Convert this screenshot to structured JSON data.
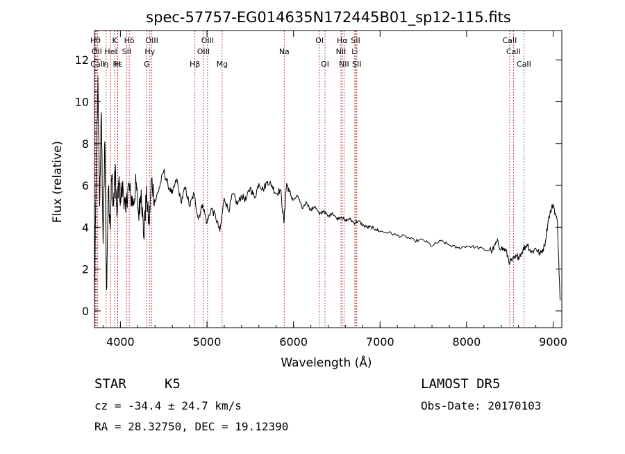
{
  "chart_data": {
    "type": "line",
    "title": "spec-57757-EG014635N172445B01_sp12-115.fits",
    "xlabel": "Wavelength (Å)",
    "ylabel": "Flux (relative)",
    "xlim": [
      3700,
      9100
    ],
    "ylim": [
      -0.8,
      13.4
    ],
    "xticks": [
      4000,
      5000,
      6000,
      7000,
      8000,
      9000
    ],
    "yticks": [
      0,
      2,
      4,
      6,
      8,
      10,
      12
    ],
    "grid": false,
    "series": [
      {
        "color": "#000000",
        "x": [
          3700,
          3720,
          3740,
          3760,
          3780,
          3800,
          3820,
          3840,
          3860,
          3880,
          3900,
          3920,
          3940,
          3960,
          3980,
          4000,
          4030,
          4060,
          4090,
          4120,
          4150,
          4180,
          4210,
          4240,
          4270,
          4300,
          4330,
          4360,
          4400,
          4450,
          4500,
          4550,
          4600,
          4650,
          4700,
          4750,
          4800,
          4850,
          4900,
          4950,
          5000,
          5050,
          5100,
          5150,
          5200,
          5250,
          5300,
          5350,
          5400,
          5450,
          5500,
          5550,
          5600,
          5650,
          5700,
          5750,
          5800,
          5850,
          5890,
          5920,
          5950,
          6000,
          6050,
          6100,
          6150,
          6200,
          6250,
          6300,
          6350,
          6400,
          6450,
          6500,
          6550,
          6600,
          6650,
          6700,
          6750,
          6800,
          6850,
          6900,
          6950,
          7000,
          7100,
          7200,
          7300,
          7400,
          7500,
          7600,
          7700,
          7800,
          7900,
          8000,
          8100,
          8200,
          8300,
          8350,
          8400,
          8450,
          8500,
          8550,
          8600,
          8650,
          8700,
          8750,
          8800,
          8850,
          8900,
          8950,
          9000,
          9050,
          9080
        ],
        "y": [
          0.5,
          6.5,
          11.2,
          5.0,
          9.5,
          3.2,
          8.1,
          1.0,
          5.9,
          4.2,
          6.5,
          5.0,
          6.8,
          4.5,
          6.2,
          5.4,
          5.9,
          4.7,
          6.0,
          5.5,
          5.1,
          6.1,
          4.6,
          5.8,
          3.5,
          5.6,
          4.1,
          6.3,
          5.2,
          5.9,
          6.7,
          6.0,
          5.6,
          6.3,
          5.2,
          5.9,
          5.0,
          5.6,
          4.4,
          5.1,
          4.2,
          4.9,
          4.5,
          3.8,
          5.4,
          4.8,
          5.6,
          5.1,
          5.5,
          5.3,
          5.9,
          5.4,
          6.1,
          5.8,
          6.2,
          6.0,
          5.6,
          5.8,
          4.2,
          6.1,
          5.7,
          5.3,
          5.5,
          4.9,
          5.2,
          4.8,
          5.0,
          4.6,
          4.8,
          4.5,
          4.7,
          4.4,
          4.5,
          4.3,
          4.4,
          4.2,
          4.3,
          4.1,
          4.0,
          4.0,
          3.9,
          3.8,
          3.75,
          3.6,
          3.55,
          3.35,
          3.4,
          3.1,
          3.35,
          3.15,
          3.0,
          3.1,
          3.05,
          2.95,
          2.9,
          3.3,
          3.0,
          2.9,
          2.3,
          2.5,
          2.6,
          2.9,
          3.2,
          2.8,
          3.0,
          2.7,
          3.1,
          4.5,
          5.1,
          4.2,
          0.5
        ]
      }
    ],
    "line_markers": [
      {
        "label": "Hθ",
        "x": 3712,
        "row": 1
      },
      {
        "label": "OII",
        "x": 3727,
        "row": 2
      },
      {
        "label": "CaII",
        "x": 3738,
        "row": 3
      },
      {
        "label": "K",
        "x": 3934,
        "row": 1
      },
      {
        "label": "Hε",
        "x": 3970,
        "row": 3
      },
      {
        "label": "H",
        "x": 3968,
        "row": 3
      },
      {
        "label": "HeI",
        "x": 3889,
        "row": 2
      },
      {
        "label": "η",
        "x": 3835,
        "row": 3
      },
      {
        "label": "SII",
        "x": 4072,
        "row": 2
      },
      {
        "label": "Hδ",
        "x": 4102,
        "row": 1
      },
      {
        "label": "OIII",
        "x": 4363,
        "row": 1
      },
      {
        "label": "Hγ",
        "x": 4340,
        "row": 2
      },
      {
        "label": "G",
        "x": 4305,
        "row": 3
      },
      {
        "label": "Hβ",
        "x": 4861,
        "row": 3
      },
      {
        "label": "OIII",
        "x": 5007,
        "row": 1
      },
      {
        "label": "OIII",
        "x": 4959,
        "row": 2
      },
      {
        "label": "Mg",
        "x": 5175,
        "row": 3
      },
      {
        "label": "Na",
        "x": 5893,
        "row": 2
      },
      {
        "label": "OI",
        "x": 6300,
        "row": 1
      },
      {
        "label": "OI",
        "x": 6364,
        "row": 3
      },
      {
        "label": "Hα",
        "x": 6563,
        "row": 1
      },
      {
        "label": "NII",
        "x": 6548,
        "row": 2
      },
      {
        "label": "NII",
        "x": 6584,
        "row": 3
      },
      {
        "label": "SII",
        "x": 6717,
        "row": 1
      },
      {
        "label": "Li",
        "x": 6708,
        "row": 2
      },
      {
        "label": "SII",
        "x": 6731,
        "row": 3
      },
      {
        "label": "CaII",
        "x": 8498,
        "row": 1
      },
      {
        "label": "CaII",
        "x": 8542,
        "row": 2
      },
      {
        "label": "CaII",
        "x": 8662,
        "row": 3
      }
    ]
  },
  "info": {
    "class": "STAR",
    "subclass": "K5",
    "survey": "LAMOST DR5",
    "cz": "cz = -34.4 ± 24.7 km/s",
    "obs_date": "Obs-Date: 20170103",
    "coords": "RA =  28.32750, DEC =  19.12390"
  }
}
